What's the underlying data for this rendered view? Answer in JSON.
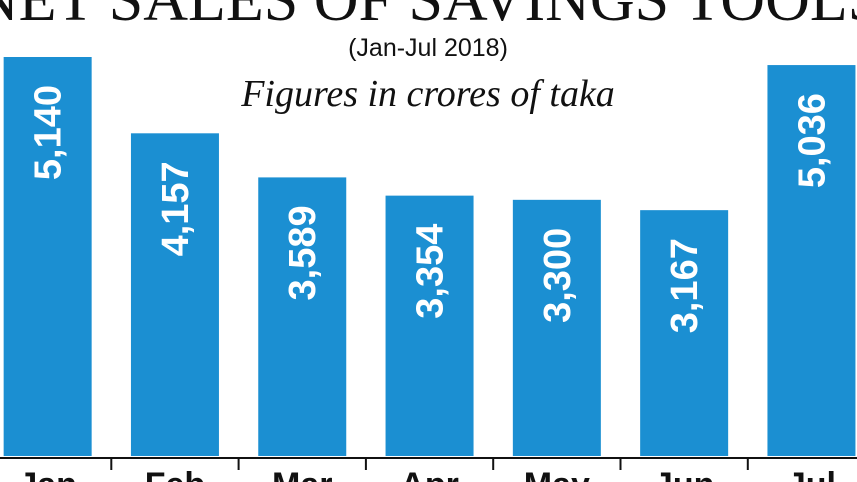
{
  "chart_data": {
    "type": "bar",
    "title": "NET SALES OF SAVINGS TOOLS",
    "subtitle": "(Jan-Jul 2018)",
    "note": "Figures in crores of taka",
    "categories": [
      "Jan",
      "Feb",
      "Mar",
      "Apr",
      "May",
      "Jun",
      "Jul"
    ],
    "values": [
      5140,
      4157,
      3589,
      3354,
      3300,
      3167,
      5036
    ],
    "value_labels": [
      "5,140",
      "4,157",
      "3,589",
      "3,354",
      "3,300",
      "3,167",
      "5,036"
    ],
    "color": "#1b8fd2"
  }
}
